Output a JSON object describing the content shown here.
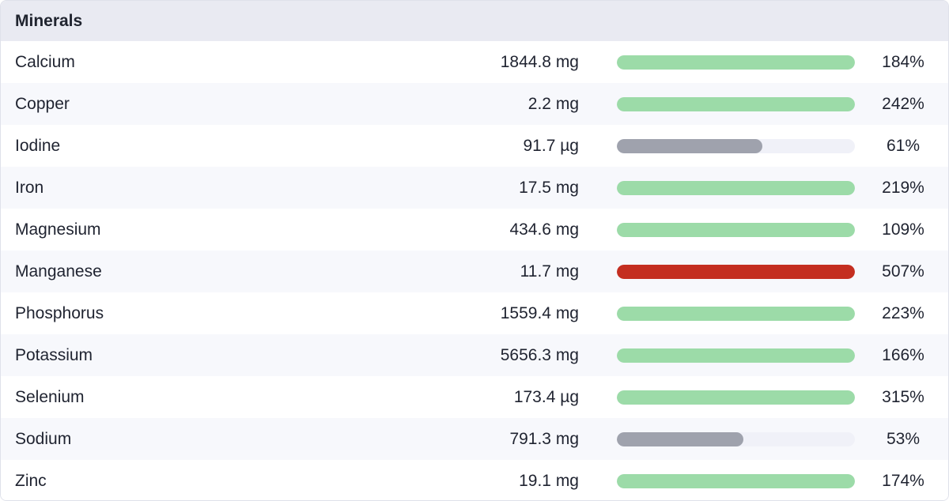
{
  "panel": {
    "title": "Minerals"
  },
  "colors": {
    "ok": "#9cdba8",
    "low": "#9fa2ad",
    "high": "#c42e20",
    "track": "#f0f1f8"
  },
  "minerals": [
    {
      "name": "Calcium",
      "amount": "1844.8 mg",
      "percent": "184%",
      "fill": 1.0,
      "status": "ok"
    },
    {
      "name": "Copper",
      "amount": "2.2 mg",
      "percent": "242%",
      "fill": 1.0,
      "status": "ok"
    },
    {
      "name": "Iodine",
      "amount": "91.7 µg",
      "percent": "61%",
      "fill": 0.61,
      "status": "low"
    },
    {
      "name": "Iron",
      "amount": "17.5 mg",
      "percent": "219%",
      "fill": 1.0,
      "status": "ok"
    },
    {
      "name": "Magnesium",
      "amount": "434.6 mg",
      "percent": "109%",
      "fill": 1.0,
      "status": "ok"
    },
    {
      "name": "Manganese",
      "amount": "11.7 mg",
      "percent": "507%",
      "fill": 1.0,
      "status": "high"
    },
    {
      "name": "Phosphorus",
      "amount": "1559.4 mg",
      "percent": "223%",
      "fill": 1.0,
      "status": "ok"
    },
    {
      "name": "Potassium",
      "amount": "5656.3 mg",
      "percent": "166%",
      "fill": 1.0,
      "status": "ok"
    },
    {
      "name": "Selenium",
      "amount": "173.4 µg",
      "percent": "315%",
      "fill": 1.0,
      "status": "ok"
    },
    {
      "name": "Sodium",
      "amount": "791.3 mg",
      "percent": "53%",
      "fill": 0.53,
      "status": "low"
    },
    {
      "name": "Zinc",
      "amount": "19.1 mg",
      "percent": "174%",
      "fill": 1.0,
      "status": "ok"
    }
  ]
}
